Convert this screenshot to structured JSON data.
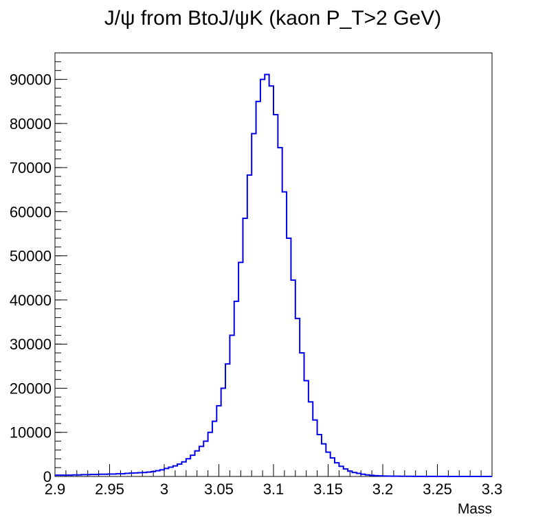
{
  "chart_data": {
    "type": "histogram",
    "title": "J/ψ from BtoJ/ψK (kaon P_T>2 GeV)",
    "xlabel": "Mass",
    "ylabel": "",
    "xlim": [
      2.9,
      3.3
    ],
    "ylim": [
      0,
      96000
    ],
    "grid": false,
    "legend": "none",
    "line_color": "#0000ee",
    "x_ticks": [
      2.9,
      2.95,
      3.0,
      3.05,
      3.1,
      3.15,
      3.2,
      3.25,
      3.3
    ],
    "x_tick_labels": [
      "2.9",
      "2.95",
      "3",
      "3.05",
      "3.1",
      "3.15",
      "3.2",
      "3.25",
      "3.3"
    ],
    "y_ticks": [
      0,
      10000,
      20000,
      30000,
      40000,
      50000,
      60000,
      70000,
      80000,
      90000
    ],
    "y_tick_labels": [
      "0",
      "10000",
      "20000",
      "30000",
      "40000",
      "50000",
      "60000",
      "70000",
      "80000",
      "90000"
    ],
    "bin_width": 0.004,
    "bin_edges_start": 2.9,
    "values": [
      300,
      300,
      300,
      300,
      350,
      350,
      400,
      400,
      450,
      450,
      500,
      500,
      550,
      550,
      600,
      600,
      700,
      750,
      800,
      850,
      900,
      1000,
      1100,
      1300,
      1500,
      1800,
      2100,
      2400,
      2800,
      3300,
      4000,
      4800,
      5800,
      6800,
      8000,
      10000,
      12500,
      16000,
      20000,
      25500,
      32000,
      39700,
      48500,
      58500,
      68300,
      77700,
      85000,
      90000,
      91100,
      88500,
      82000,
      74500,
      64500,
      54000,
      44500,
      35800,
      28000,
      21700,
      16900,
      12800,
      9500,
      7400,
      5500,
      4200,
      3100,
      2300,
      1700,
      1200,
      900,
      700,
      500,
      350,
      250,
      180,
      130,
      100,
      80,
      60,
      50,
      40,
      30,
      30,
      20,
      20,
      15,
      15,
      10,
      10,
      10,
      10,
      5,
      5,
      5,
      5,
      5,
      5,
      5,
      5,
      5,
      5
    ]
  }
}
